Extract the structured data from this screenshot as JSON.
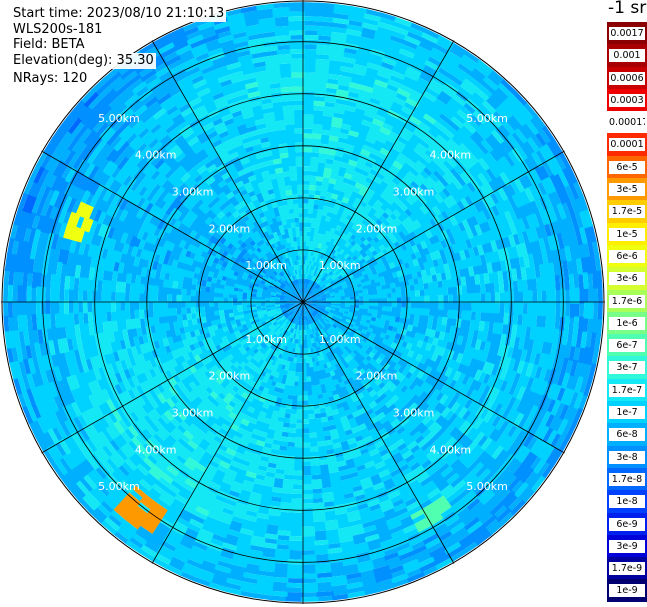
{
  "header": {
    "start_time": "Start time: 2023/08/10 21:10:13",
    "device": "WLS200s-181",
    "field": "Field: BETA",
    "elevation": "Elevation(deg): 35.30",
    "nrays": "NRays: 120"
  },
  "legend": {
    "title": "-1 sr",
    "entries": [
      {
        "label": "0.0017",
        "color": "#8b0000"
      },
      {
        "label": "0.001",
        "color": "#a80000"
      },
      {
        "label": "0.0006",
        "color": "#c80000"
      },
      {
        "label": "0.0003",
        "color": "#ee0000"
      },
      {
        "label": "0.00017",
        "color": "#ffffff"
      },
      {
        "label": "0.0001",
        "color": "#ff2a00"
      },
      {
        "label": "6e-5",
        "color": "#ff6600"
      },
      {
        "label": "3e-5",
        "color": "#ff9900"
      },
      {
        "label": "1.7e-5",
        "color": "#ffcc00"
      },
      {
        "label": "1e-5",
        "color": "#ffee00"
      },
      {
        "label": "6e-6",
        "color": "#f0ff10"
      },
      {
        "label": "3e-6",
        "color": "#d6ff30"
      },
      {
        "label": "1.7e-6",
        "color": "#a8ff5a"
      },
      {
        "label": "1e-6",
        "color": "#78ff88"
      },
      {
        "label": "6e-7",
        "color": "#50ffb0"
      },
      {
        "label": "3e-7",
        "color": "#30f8d8"
      },
      {
        "label": "1.7e-7",
        "color": "#14e8f4"
      },
      {
        "label": "1e-7",
        "color": "#00d2ff"
      },
      {
        "label": "6e-8",
        "color": "#00b0ff"
      },
      {
        "label": "3e-8",
        "color": "#0090ff"
      },
      {
        "label": "1.7e-8",
        "color": "#0068ff"
      },
      {
        "label": "1e-8",
        "color": "#0040ff"
      },
      {
        "label": "6e-9",
        "color": "#0020ee"
      },
      {
        "label": "3e-9",
        "color": "#0000d8"
      },
      {
        "label": "1.7e-9",
        "color": "#0000a0"
      },
      {
        "label": "1e-9",
        "color": "#000070"
      }
    ]
  },
  "chart_data": {
    "type": "heatmap",
    "projection": "polar-ppi",
    "field": "BETA",
    "nrays": 120,
    "range_km": [
      0,
      5.8
    ],
    "range_ring_labels": [
      "1.00km",
      "2.00km",
      "3.00km",
      "4.00km",
      "5.00km"
    ],
    "range_rings_km": [
      1,
      2,
      3,
      4,
      5
    ],
    "spokes_deg": [
      0,
      30,
      60,
      90,
      120,
      150,
      180,
      210,
      240,
      270,
      300,
      330
    ],
    "colorbar_unit": "-1 sr",
    "colorbar_ticks": [
      "0.0017",
      "0.001",
      "0.0006",
      "0.0003",
      "0.00017",
      "0.0001",
      "6e-5",
      "3e-5",
      "1.7e-5",
      "1e-5",
      "6e-6",
      "3e-6",
      "1.7e-6",
      "1e-6",
      "6e-7",
      "3e-7",
      "1.7e-7",
      "1e-7",
      "6e-8",
      "3e-8",
      "1.7e-8",
      "1e-8",
      "6e-9",
      "3e-9",
      "1.7e-9",
      "1e-9"
    ],
    "dominant_value_range": [
      "1e-8",
      "1e-7"
    ],
    "hotspots": [
      {
        "azimuth_deg": 290,
        "range_km_from": 4.4,
        "range_km_to": 4.8,
        "value": "6e-6"
      },
      {
        "azimuth_deg": 218,
        "range_km_from": 4.8,
        "range_km_to": 5.4,
        "value": "3e-5"
      },
      {
        "azimuth_deg": 148,
        "range_km_from": 4.6,
        "range_km_to": 5.0,
        "value": "6e-7"
      }
    ]
  }
}
